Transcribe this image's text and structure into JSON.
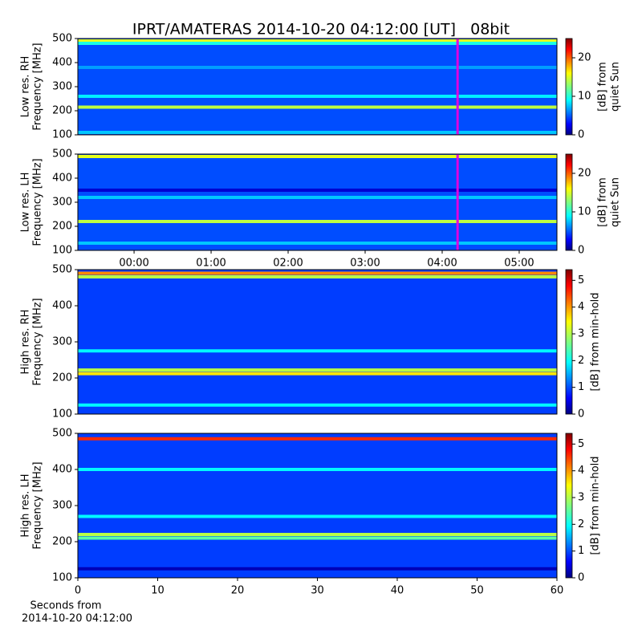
{
  "title": "IPRT/AMATERAS 2014-10-20 04:12:00 [UT]   08bit",
  "xlabel": [
    "Seconds from",
    "2014-10-20 04:12:00"
  ],
  "chart_data": [
    {
      "type": "spectrogram",
      "ylabel": [
        "Low res. RH",
        "Frequency [MHz]"
      ],
      "ylim": [
        100,
        500
      ],
      "yticks": [
        100,
        200,
        300,
        400,
        500
      ],
      "xlim": [
        -0.73,
        5.49
      ],
      "marker_x": 4.2,
      "marker_color": "#e000e0",
      "colorbar": {
        "label": [
          "[dB] from",
          "quiet Sun"
        ],
        "lim": [
          0,
          25
        ],
        "ticks": [
          0,
          10,
          20
        ]
      },
      "background": 5,
      "features": [
        {
          "freq": 490,
          "level": 15
        },
        {
          "freq": 480,
          "level": 10
        },
        {
          "freq": 215,
          "level": 14
        },
        {
          "freq": 260,
          "level": 9
        },
        {
          "freq": 380,
          "level": 7
        },
        {
          "freq": 110,
          "level": 8
        }
      ]
    },
    {
      "type": "spectrogram",
      "ylabel": [
        "Low res. LH",
        "Frequency [MHz]"
      ],
      "ylim": [
        100,
        500
      ],
      "yticks": [
        100,
        200,
        300,
        400,
        500
      ],
      "xlim": [
        -0.73,
        5.49
      ],
      "marker_x": 4.2,
      "marker_color": "#e000e0",
      "xticks": [
        {
          "value": 0,
          "label": "00:00"
        },
        {
          "value": 1,
          "label": "01:00"
        },
        {
          "value": 2,
          "label": "02:00"
        },
        {
          "value": 3,
          "label": "03:00"
        },
        {
          "value": 4,
          "label": "04:00"
        },
        {
          "value": 5,
          "label": "05:00"
        }
      ],
      "colorbar": {
        "label": [
          "[dB] from",
          "quiet Sun"
        ],
        "lim": [
          0,
          25
        ],
        "ticks": [
          0,
          10,
          20
        ]
      },
      "background": 5,
      "features": [
        {
          "freq": 490,
          "level": 15
        },
        {
          "freq": 220,
          "level": 14
        },
        {
          "freq": 320,
          "level": 8
        },
        {
          "freq": 350,
          "level": 2
        },
        {
          "freq": 130,
          "level": 8
        }
      ]
    },
    {
      "type": "spectrogram",
      "ylabel": [
        "High res. RH",
        "Frequency [MHz]"
      ],
      "ylim": [
        100,
        500
      ],
      "yticks": [
        100,
        200,
        300,
        400,
        500
      ],
      "xlim": [
        0,
        60
      ],
      "colorbar": {
        "label": [
          "[dB] from min-hold"
        ],
        "lim": [
          0,
          5.4
        ],
        "ticks": [
          0,
          1,
          2,
          3,
          4,
          5
        ]
      },
      "background": 1,
      "features": [
        {
          "freq": 490,
          "level": 4
        },
        {
          "freq": 480,
          "level": 3
        },
        {
          "freq": 222,
          "level": 3
        },
        {
          "freq": 212,
          "level": 3.5
        },
        {
          "freq": 275,
          "level": 2
        },
        {
          "freq": 125,
          "level": 2
        }
      ]
    },
    {
      "type": "spectrogram",
      "ylabel": [
        "High res. LH",
        "Frequency [MHz]"
      ],
      "ylim": [
        100,
        500
      ],
      "yticks": [
        100,
        200,
        300,
        400,
        500
      ],
      "xlim": [
        0,
        60
      ],
      "xticks": [
        0,
        10,
        20,
        30,
        40,
        50,
        60
      ],
      "colorbar": {
        "label": [
          "[dB] from min-hold"
        ],
        "lim": [
          0,
          5.4
        ],
        "ticks": [
          0,
          1,
          2,
          3,
          4,
          5
        ]
      },
      "background": 1,
      "features": [
        {
          "freq": 485,
          "level": 4.5
        },
        {
          "freq": 220,
          "level": 3
        },
        {
          "freq": 210,
          "level": 2.5
        },
        {
          "freq": 270,
          "level": 2
        },
        {
          "freq": 400,
          "level": 2
        },
        {
          "freq": 125,
          "level": 0.3
        }
      ]
    }
  ]
}
